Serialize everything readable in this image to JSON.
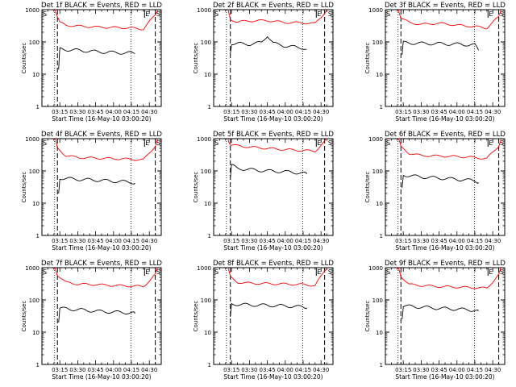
{
  "chart_data": [
    {
      "type": "line",
      "title": "Det 1f BLACK = Events, RED = LLD",
      "xlabel": "Start Time (16-May-10 03:00:20)",
      "ylabel": "Counts/sec",
      "yscale": "log",
      "ylim": [
        1,
        1000
      ],
      "xlim": [
        "03:00",
        "04:40"
      ],
      "x_ticks": [
        "03:15",
        "03:30",
        "03:45",
        "04:00",
        "04:15",
        "04:30"
      ],
      "y_ticks": [
        "1",
        "10",
        "100",
        "1000"
      ],
      "markers": [
        {
          "label": "S",
          "x": "03:00"
        },
        {
          "label": "E",
          "x": "04:26"
        },
        {
          "label": "S",
          "x": "04:40"
        }
      ],
      "series": [
        {
          "name": "RED = LLD",
          "color": "#ff0000",
          "x": [
            "03:11",
            "03:13",
            "03:15",
            "03:20",
            "03:30",
            "03:45",
            "04:00",
            "04:15",
            "04:25",
            "04:35",
            "04:37"
          ],
          "values": [
            1000,
            600,
            400,
            330,
            310,
            290,
            280,
            270,
            250,
            700,
            1000
          ]
        },
        {
          "name": "BLACK = Events",
          "color": "#000000",
          "x": [
            "03:14",
            "03:15",
            "03:20",
            "03:30",
            "03:45",
            "04:00",
            "04:15",
            "04:18"
          ],
          "values": [
            14,
            60,
            58,
            55,
            50,
            47,
            45,
            44
          ]
        }
      ]
    },
    {
      "type": "line",
      "title": "Det 2f BLACK = Events, RED = LLD",
      "xlabel": "Start Time (16-May-10 03:00:20)",
      "ylabel": "Counts/sec",
      "yscale": "log",
      "ylim": [
        1,
        1000
      ],
      "xlim": [
        "03:00",
        "04:40"
      ],
      "x_ticks": [
        "03:15",
        "03:30",
        "03:45",
        "04:00",
        "04:15",
        "04:30"
      ],
      "y_ticks": [
        "1",
        "10",
        "100",
        "1000"
      ],
      "markers": [
        {
          "label": "S",
          "x": "03:00"
        },
        {
          "label": "E",
          "x": "04:26"
        },
        {
          "label": "S",
          "x": "04:40"
        }
      ],
      "series": [
        {
          "name": "RED = LLD",
          "color": "#ff0000",
          "x": [
            "03:12",
            "03:14",
            "03:20",
            "03:30",
            "03:45",
            "04:00",
            "04:15",
            "04:25",
            "04:33",
            "04:35"
          ],
          "values": [
            1000,
            500,
            420,
            450,
            460,
            400,
            390,
            370,
            800,
            1000
          ]
        },
        {
          "name": "BLACK = Events",
          "color": "#000000",
          "x": [
            "03:14",
            "03:15",
            "03:30",
            "03:40",
            "03:45",
            "03:50",
            "04:00",
            "04:15",
            "04:18"
          ],
          "values": [
            45,
            90,
            85,
            95,
            160,
            90,
            75,
            65,
            60
          ]
        }
      ]
    },
    {
      "type": "line",
      "title": "Det 3f BLACK = Events, RED = LLD",
      "xlabel": "Start Time (16-May-10 03:00:20)",
      "ylabel": "Counts/sec",
      "yscale": "log",
      "ylim": [
        1,
        1000
      ],
      "xlim": [
        "03:00",
        "04:40"
      ],
      "x_ticks": [
        "03:15",
        "03:30",
        "03:45",
        "04:00",
        "04:15",
        "04:30"
      ],
      "y_ticks": [
        "1",
        "10",
        "100",
        "1000"
      ],
      "markers": [
        {
          "label": "S",
          "x": "03:00"
        },
        {
          "label": "E",
          "x": "04:26"
        },
        {
          "label": "S",
          "x": "04:40"
        }
      ],
      "series": [
        {
          "name": "RED = LLD",
          "color": "#ff0000",
          "x": [
            "03:11",
            "03:13",
            "03:20",
            "03:30",
            "03:45",
            "04:00",
            "04:15",
            "04:25",
            "04:35",
            "04:37"
          ],
          "values": [
            1000,
            550,
            400,
            350,
            380,
            330,
            300,
            270,
            600,
            1000
          ]
        },
        {
          "name": "BLACK = Events",
          "color": "#000000",
          "x": [
            "03:14",
            "03:15",
            "03:30",
            "03:45",
            "04:00",
            "04:15",
            "04:18"
          ],
          "values": [
            40,
            95,
            90,
            88,
            85,
            80,
            55
          ]
        }
      ]
    },
    {
      "type": "line",
      "title": "Det 4f BLACK = Events, RED = LLD",
      "xlabel": "Start Time (16-May-10 03:00:20)",
      "ylabel": "Counts/sec",
      "yscale": "log",
      "ylim": [
        1,
        1000
      ],
      "xlim": [
        "03:00",
        "04:40"
      ],
      "x_ticks": [
        "03:15",
        "03:30",
        "03:45",
        "04:00",
        "04:15",
        "04:30"
      ],
      "y_ticks": [
        "1",
        "10",
        "100",
        "1000"
      ],
      "markers": [
        {
          "label": "S",
          "x": "03:00"
        },
        {
          "label": "E",
          "x": "04:26"
        },
        {
          "label": "S",
          "x": "04:40"
        }
      ],
      "series": [
        {
          "name": "RED = LLD",
          "color": "#ff0000",
          "x": [
            "03:11",
            "03:13",
            "03:20",
            "03:30",
            "03:45",
            "04:00",
            "04:15",
            "04:25",
            "04:35",
            "04:37"
          ],
          "values": [
            1000,
            500,
            300,
            260,
            250,
            240,
            230,
            220,
            600,
            1000
          ]
        },
        {
          "name": "BLACK = Events",
          "color": "#000000",
          "x": [
            "03:14",
            "03:15",
            "03:30",
            "03:45",
            "04:00",
            "04:15",
            "04:18"
          ],
          "values": [
            20,
            60,
            55,
            52,
            48,
            45,
            42
          ]
        }
      ]
    },
    {
      "type": "line",
      "title": "Det 5f BLACK = Events, RED = LLD",
      "xlabel": "Start Time (16-May-10 03:00:20)",
      "ylabel": "Counts/sec",
      "yscale": "log",
      "ylim": [
        1,
        1000
      ],
      "xlim": [
        "03:00",
        "04:40"
      ],
      "x_ticks": [
        "03:15",
        "03:30",
        "03:45",
        "04:00",
        "04:15",
        "04:30"
      ],
      "y_ticks": [
        "1",
        "10",
        "100",
        "1000"
      ],
      "markers": [
        {
          "label": "S",
          "x": "03:00"
        },
        {
          "label": "E",
          "x": "04:26"
        },
        {
          "label": "S",
          "x": "04:40"
        }
      ],
      "series": [
        {
          "name": "RED = LLD",
          "color": "#ff0000",
          "x": [
            "03:12",
            "03:14",
            "03:20",
            "03:30",
            "03:45",
            "04:00",
            "04:15",
            "04:25",
            "04:33",
            "04:35"
          ],
          "values": [
            1000,
            650,
            600,
            550,
            500,
            460,
            430,
            410,
            800,
            1000
          ]
        },
        {
          "name": "BLACK = Events",
          "color": "#000000",
          "x": [
            "03:14",
            "03:15",
            "03:20",
            "03:30",
            "03:45",
            "04:00",
            "04:15",
            "04:18"
          ],
          "values": [
            60,
            150,
            120,
            110,
            100,
            95,
            85,
            80
          ]
        }
      ]
    },
    {
      "type": "line",
      "title": "Det 6f BLACK = Events, RED = LLD",
      "xlabel": "Start Time (16-May-10 03:00:20)",
      "ylabel": "Counts/sec",
      "yscale": "log",
      "ylim": [
        1,
        1000
      ],
      "xlim": [
        "03:00",
        "04:40"
      ],
      "x_ticks": [
        "03:15",
        "03:30",
        "03:45",
        "04:00",
        "04:15",
        "04:30"
      ],
      "y_ticks": [
        "1",
        "10",
        "100",
        "1000"
      ],
      "markers": [
        {
          "label": "S",
          "x": "03:00"
        },
        {
          "label": "E",
          "x": "04:26"
        },
        {
          "label": "S",
          "x": "04:40"
        }
      ],
      "series": [
        {
          "name": "RED = LLD",
          "color": "#ff0000",
          "x": [
            "03:11",
            "03:13",
            "03:20",
            "03:30",
            "03:45",
            "04:00",
            "04:15",
            "04:25",
            "04:35",
            "04:37"
          ],
          "values": [
            1000,
            550,
            350,
            300,
            290,
            280,
            260,
            240,
            600,
            1000
          ]
        },
        {
          "name": "BLACK = Events",
          "color": "#000000",
          "x": [
            "03:14",
            "03:15",
            "03:30",
            "03:45",
            "04:00",
            "04:15",
            "04:18"
          ],
          "values": [
            30,
            75,
            65,
            60,
            55,
            50,
            45
          ]
        }
      ]
    },
    {
      "type": "line",
      "title": "Det 7f BLACK = Events, RED = LLD",
      "xlabel": "Start Time (16-May-10 03:00:20)",
      "ylabel": "Counts/sec",
      "yscale": "log",
      "ylim": [
        1,
        1000
      ],
      "xlim": [
        "03:00",
        "04:40"
      ],
      "x_ticks": [
        "03:15",
        "03:30",
        "03:45",
        "04:00",
        "04:15",
        "04:30"
      ],
      "y_ticks": [
        "1",
        "10",
        "100",
        "1000"
      ],
      "markers": [
        {
          "label": "S",
          "x": "03:00"
        },
        {
          "label": "E",
          "x": "04:26"
        },
        {
          "label": "S",
          "x": "04:40"
        }
      ],
      "series": [
        {
          "name": "RED = LLD",
          "color": "#ff0000",
          "x": [
            "03:11",
            "03:13",
            "03:20",
            "03:30",
            "03:45",
            "04:00",
            "04:15",
            "04:25",
            "04:35",
            "04:37"
          ],
          "values": [
            1000,
            600,
            350,
            310,
            300,
            280,
            270,
            260,
            600,
            1000
          ]
        },
        {
          "name": "BLACK = Events",
          "color": "#000000",
          "x": [
            "03:14",
            "03:15",
            "03:30",
            "03:45",
            "04:00",
            "04:15",
            "04:18"
          ],
          "values": [
            20,
            55,
            50,
            45,
            42,
            40,
            38
          ]
        }
      ]
    },
    {
      "type": "line",
      "title": "Det 8f BLACK = Events, RED = LLD",
      "xlabel": "Start Time (16-May-10 03:00:20)",
      "ylabel": "Counts/sec",
      "yscale": "log",
      "ylim": [
        1,
        1000
      ],
      "xlim": [
        "03:00",
        "04:40"
      ],
      "x_ticks": [
        "03:15",
        "03:30",
        "03:45",
        "04:00",
        "04:15",
        "04:30"
      ],
      "y_ticks": [
        "1",
        "10",
        "100",
        "1000"
      ],
      "markers": [
        {
          "label": "S",
          "x": "03:00"
        },
        {
          "label": "E",
          "x": "04:26"
        },
        {
          "label": "S",
          "x": "04:40"
        }
      ],
      "series": [
        {
          "name": "RED = LLD",
          "color": "#ff0000",
          "x": [
            "03:12",
            "03:14",
            "03:20",
            "03:30",
            "03:45",
            "04:00",
            "04:15",
            "04:25",
            "04:33",
            "04:35"
          ],
          "values": [
            1000,
            500,
            350,
            330,
            320,
            310,
            300,
            280,
            800,
            1000
          ]
        },
        {
          "name": "BLACK = Events",
          "color": "#000000",
          "x": [
            "03:14",
            "03:15",
            "03:30",
            "03:45",
            "04:00",
            "04:15",
            "04:18"
          ],
          "values": [
            30,
            75,
            70,
            68,
            65,
            60,
            58
          ]
        }
      ]
    },
    {
      "type": "line",
      "title": "Det 9f BLACK = Events, RED = LLD",
      "xlabel": "Start Time (16-May-10 03:00:20)",
      "ylabel": "Counts/sec",
      "yscale": "log",
      "ylim": [
        1,
        1000
      ],
      "xlim": [
        "03:00",
        "04:40"
      ],
      "x_ticks": [
        "03:15",
        "03:30",
        "03:45",
        "04:00",
        "04:15",
        "04:30"
      ],
      "y_ticks": [
        "1",
        "10",
        "100",
        "1000"
      ],
      "markers": [
        {
          "label": "S",
          "x": "03:00"
        },
        {
          "label": "E",
          "x": "04:26"
        },
        {
          "label": "S",
          "x": "04:40"
        }
      ],
      "series": [
        {
          "name": "RED = LLD",
          "color": "#ff0000",
          "x": [
            "03:11",
            "03:13",
            "03:20",
            "03:30",
            "03:45",
            "04:00",
            "04:15",
            "04:25",
            "04:35",
            "04:37"
          ],
          "values": [
            1000,
            550,
            300,
            280,
            260,
            250,
            240,
            230,
            600,
            1000
          ]
        },
        {
          "name": "BLACK = Events",
          "color": "#000000",
          "x": [
            "03:14",
            "03:15",
            "03:30",
            "03:45",
            "04:00",
            "04:15",
            "04:18"
          ],
          "values": [
            25,
            65,
            60,
            55,
            52,
            48,
            45
          ]
        }
      ]
    }
  ]
}
